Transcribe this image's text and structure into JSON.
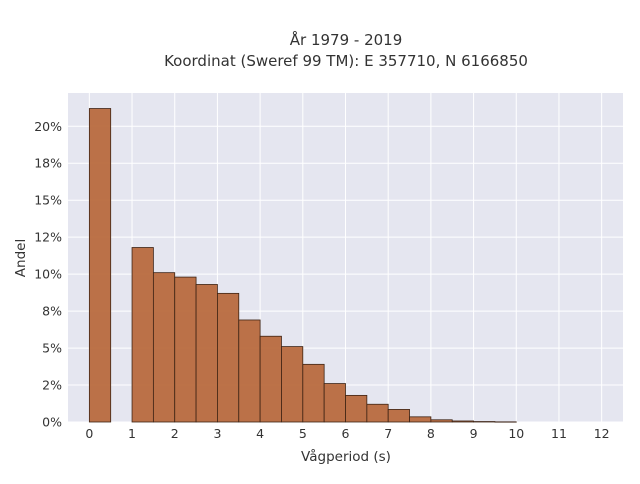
{
  "chart_data": {
    "type": "bar",
    "title_lines": [
      "År 1979 - 2019",
      "Koordinat (Sweref 99 TM): E 357710, N 6166850"
    ],
    "xlabel": "Vågperiod (s)",
    "ylabel": "Andel",
    "xlim": [
      -0.5,
      12.5
    ],
    "ylim": [
      0,
      0.2225
    ],
    "grid": true,
    "x_ticks": [
      0,
      1,
      2,
      3,
      4,
      5,
      6,
      7,
      8,
      9,
      10,
      11,
      12
    ],
    "x_tick_labels": [
      "0",
      "1",
      "2",
      "3",
      "4",
      "5",
      "6",
      "7",
      "8",
      "9",
      "10",
      "11",
      "12"
    ],
    "y_ticks": [
      0,
      0.025,
      0.05,
      0.075,
      0.1,
      0.125,
      0.15,
      0.175,
      0.2
    ],
    "y_tick_labels": [
      "0%",
      "2%",
      "5%",
      "8%",
      "10%",
      "12%",
      "15%",
      "18%",
      "20%"
    ],
    "bin_width": 0.5,
    "bins": [
      {
        "start": 0.0,
        "value": 0.212
      },
      {
        "start": 1.0,
        "value": 0.118
      },
      {
        "start": 1.5,
        "value": 0.101
      },
      {
        "start": 2.0,
        "value": 0.098
      },
      {
        "start": 2.5,
        "value": 0.093
      },
      {
        "start": 3.0,
        "value": 0.087
      },
      {
        "start": 3.5,
        "value": 0.069
      },
      {
        "start": 4.0,
        "value": 0.058
      },
      {
        "start": 4.5,
        "value": 0.051
      },
      {
        "start": 5.0,
        "value": 0.039
      },
      {
        "start": 5.5,
        "value": 0.026
      },
      {
        "start": 6.0,
        "value": 0.018
      },
      {
        "start": 6.5,
        "value": 0.012
      },
      {
        "start": 7.0,
        "value": 0.0085
      },
      {
        "start": 7.5,
        "value": 0.0035
      },
      {
        "start": 8.0,
        "value": 0.0015
      },
      {
        "start": 8.5,
        "value": 0.0007
      },
      {
        "start": 9.0,
        "value": 0.0003
      },
      {
        "start": 9.5,
        "value": 0.0001
      }
    ],
    "colors": {
      "bar_fill": "#b86a3e",
      "bar_edge": "#3d2314",
      "plot_background": "#e5e6f0",
      "grid": "#ffffff"
    }
  }
}
